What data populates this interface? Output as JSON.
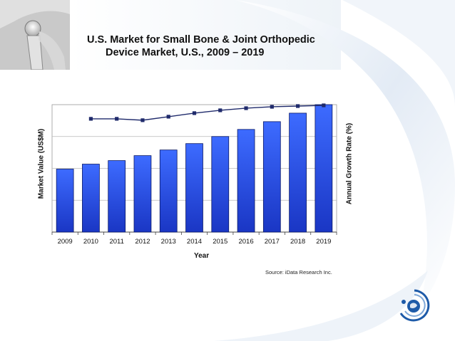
{
  "slide": {
    "title_line1": "U.S. Market for Small Bone & Joint Orthopedic",
    "title_line2": "Device Market, U.S., 2009 – 2019",
    "source": "Source: iData Research Inc."
  },
  "chart_data": {
    "type": "bar",
    "title": "U.S. Market for Small Bone & Joint Orthopedic Device Market, U.S., 2009 – 2019",
    "xlabel": "Year",
    "ylabel": "Market Value (US$M)",
    "y2label": "Annual Growth Rate (%)",
    "categories": [
      "2009",
      "2010",
      "2011",
      "2012",
      "2013",
      "2014",
      "2015",
      "2016",
      "2017",
      "2018",
      "2019"
    ],
    "ylim": [
      0,
      180
    ],
    "y2lim": [
      0,
      18
    ],
    "grid": true,
    "series": [
      {
        "name": "Market Value (US$M)",
        "type": "bar",
        "axis": "left",
        "color": "#2255ee",
        "values": [
          89,
          96,
          101,
          108,
          116,
          125,
          135,
          145,
          156,
          168,
          180
        ]
      },
      {
        "name": "Annual Growth Rate (%)",
        "type": "line",
        "axis": "right",
        "color": "#1f2a6b",
        "values": [
          null,
          16.0,
          16.0,
          15.8,
          16.3,
          16.8,
          17.2,
          17.5,
          17.7,
          17.8,
          17.9
        ]
      }
    ]
  },
  "colors": {
    "bar_top": "#3d6bff",
    "bar_bottom": "#1a36c4",
    "line": "#1f2a6b",
    "logo": "#1d5aa8"
  }
}
